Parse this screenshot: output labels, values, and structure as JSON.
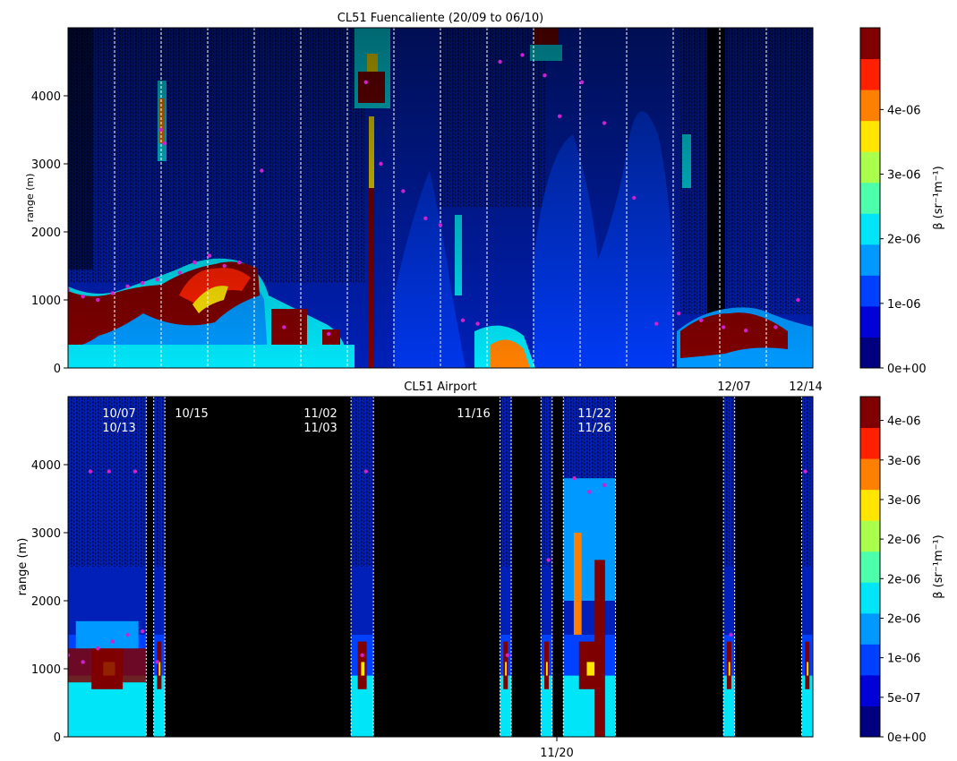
{
  "chart_data": [
    {
      "type": "heatmap",
      "title": "CL51 Fuencaliente (20/09 to 06/10)",
      "ylabel": "range (m)",
      "ylim": [
        0,
        5000
      ],
      "yticks": [
        "0",
        "1000",
        "2000",
        "3000",
        "4000"
      ],
      "colorbar": {
        "label": "β (sr⁻¹m⁻¹)",
        "ticks": [
          "0e+00",
          "1e-06",
          "2e-06",
          "3e-06",
          "4e-06"
        ],
        "colors": [
          "#00007f",
          "#0000d8",
          "#0040ff",
          "#0099ff",
          "#00e5f8",
          "#4dffaa",
          "#aaff4d",
          "#ffe500",
          "#ff8000",
          "#ff2000",
          "#7f0000"
        ]
      },
      "day_separators": 15,
      "series": [
        {
          "values": [
            {
              "x": 0.0,
              "y": 1150
            },
            {
              "x": 0.02,
              "y": 1050
            },
            {
              "x": 0.04,
              "y": 1000
            },
            {
              "x": 0.06,
              "y": 1100
            },
            {
              "x": 0.08,
              "y": 1200
            },
            {
              "x": 0.1,
              "y": 1250
            },
            {
              "x": 0.12,
              "y": 1300
            },
            {
              "x": 0.125,
              "y": 3500
            },
            {
              "x": 0.13,
              "y": 3300
            },
            {
              "x": 0.15,
              "y": 1400
            },
            {
              "x": 0.17,
              "y": 1550
            },
            {
              "x": 0.19,
              "y": 1650
            },
            {
              "x": 0.21,
              "y": 1500
            },
            {
              "x": 0.23,
              "y": 1550
            },
            {
              "x": 0.26,
              "y": 2900
            },
            {
              "x": 0.29,
              "y": 600
            },
            {
              "x": 0.35,
              "y": 500
            },
            {
              "x": 0.4,
              "y": 4200
            },
            {
              "x": 0.42,
              "y": 3000
            },
            {
              "x": 0.45,
              "y": 2600
            },
            {
              "x": 0.48,
              "y": 2200
            },
            {
              "x": 0.5,
              "y": 2100
            },
            {
              "x": 0.53,
              "y": 700
            },
            {
              "x": 0.55,
              "y": 650
            },
            {
              "x": 0.58,
              "y": 4500
            },
            {
              "x": 0.61,
              "y": 4600
            },
            {
              "x": 0.64,
              "y": 4300
            },
            {
              "x": 0.66,
              "y": 3700
            },
            {
              "x": 0.69,
              "y": 4200
            },
            {
              "x": 0.72,
              "y": 3600
            },
            {
              "x": 0.76,
              "y": 2500
            },
            {
              "x": 0.79,
              "y": 650
            },
            {
              "x": 0.82,
              "y": 800
            },
            {
              "x": 0.85,
              "y": 700
            },
            {
              "x": 0.88,
              "y": 600
            },
            {
              "x": 0.91,
              "y": 550
            },
            {
              "x": 0.95,
              "y": 600
            },
            {
              "x": 0.98,
              "y": 1000
            }
          ]
        }
      ]
    },
    {
      "type": "heatmap",
      "title": "CL51 Airport",
      "ylabel": "range (m)",
      "ylim": [
        0,
        5000
      ],
      "yticks": [
        "0",
        "1000",
        "2000",
        "3000",
        "4000"
      ],
      "xticks": [
        "11/20"
      ],
      "colorbar": {
        "label": "β (sr⁻¹m⁻¹)",
        "ticks": [
          "0e+00",
          "5e-07",
          "1e-06",
          "2e-06",
          "2e-06",
          "2e-06",
          "3e-06",
          "3e-06",
          "4e-06"
        ],
        "colors": [
          "#00007f",
          "#0000d8",
          "#0040ff",
          "#0099ff",
          "#00e5f8",
          "#4dffaa",
          "#aaff4d",
          "#ffe500",
          "#ff8000",
          "#ff2000",
          "#7f0000"
        ]
      },
      "annotations": [
        {
          "text": "10/07\n10/13",
          "x": 0.07
        },
        {
          "text": "10/15",
          "x": 0.165
        },
        {
          "text": "11/02\n11/03",
          "x": 0.34
        },
        {
          "text": "11/16",
          "x": 0.54
        },
        {
          "text": "11/22\n11/26",
          "x": 0.7
        },
        {
          "text": "12/07",
          "x": 0.895
        },
        {
          "text": "12/14",
          "x": 0.99
        }
      ],
      "data_windows": [
        [
          0.0,
          0.105
        ],
        [
          0.115,
          0.13
        ],
        [
          0.38,
          0.41
        ],
        [
          0.58,
          0.595
        ],
        [
          0.635,
          0.65
        ],
        [
          0.665,
          0.735
        ],
        [
          0.88,
          0.895
        ],
        [
          0.985,
          1.0
        ]
      ],
      "series": [
        {
          "values": [
            {
              "x": 0.0,
              "y": 1200
            },
            {
              "x": 0.02,
              "y": 1100
            },
            {
              "x": 0.04,
              "y": 1300
            },
            {
              "x": 0.06,
              "y": 1400
            },
            {
              "x": 0.08,
              "y": 1500
            },
            {
              "x": 0.1,
              "y": 1550
            },
            {
              "x": 0.12,
              "y": 1100
            },
            {
              "x": 0.03,
              "y": 3900
            },
            {
              "x": 0.055,
              "y": 3900
            },
            {
              "x": 0.09,
              "y": 3900
            },
            {
              "x": 0.395,
              "y": 1200
            },
            {
              "x": 0.4,
              "y": 3900
            },
            {
              "x": 0.59,
              "y": 1200
            },
            {
              "x": 0.645,
              "y": 2600
            },
            {
              "x": 0.68,
              "y": 3800
            },
            {
              "x": 0.7,
              "y": 3600
            },
            {
              "x": 0.72,
              "y": 3700
            },
            {
              "x": 0.89,
              "y": 1500
            },
            {
              "x": 0.99,
              "y": 3900
            }
          ]
        }
      ]
    }
  ]
}
